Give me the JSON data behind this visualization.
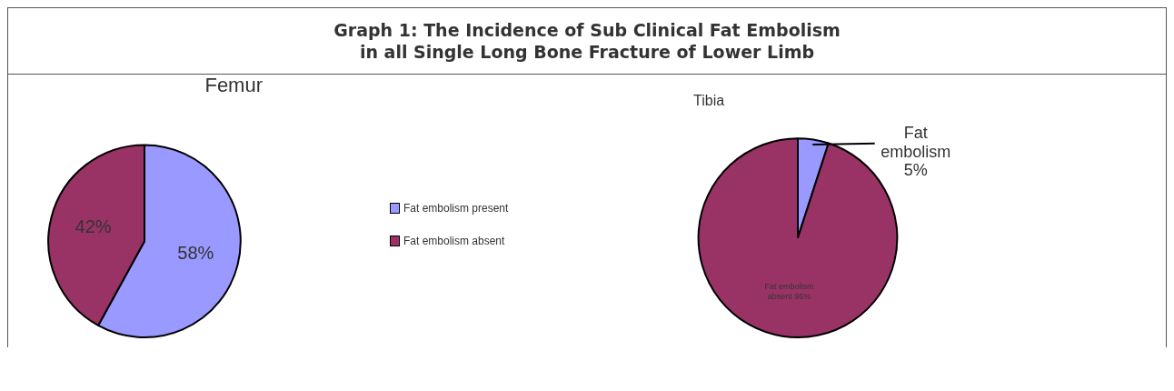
{
  "chart_data": [
    {
      "type": "other",
      "title": "Graph 1: The Incidence of Sub Clinical Fat Embolism\nin all Single Long Bone Fracture of Lower Limb"
    },
    {
      "type": "pie",
      "title": "Femur",
      "categories": [
        "Fat embolism present",
        "Fat embolism absent"
      ],
      "values": [
        58,
        42
      ],
      "colors": [
        "#9999ff",
        "#993366"
      ],
      "value_labels": [
        "58%",
        "42%"
      ],
      "legend": "right"
    },
    {
      "type": "pie",
      "title": "Tibia",
      "categories": [
        null,
        null
      ],
      "values": [
        5,
        95
      ],
      "colors": [
        "#9999ff",
        "#993366"
      ],
      "value_labels": [
        "Fat embolism 5%",
        "Fat embolism absent 95%"
      ]
    }
  ]
}
